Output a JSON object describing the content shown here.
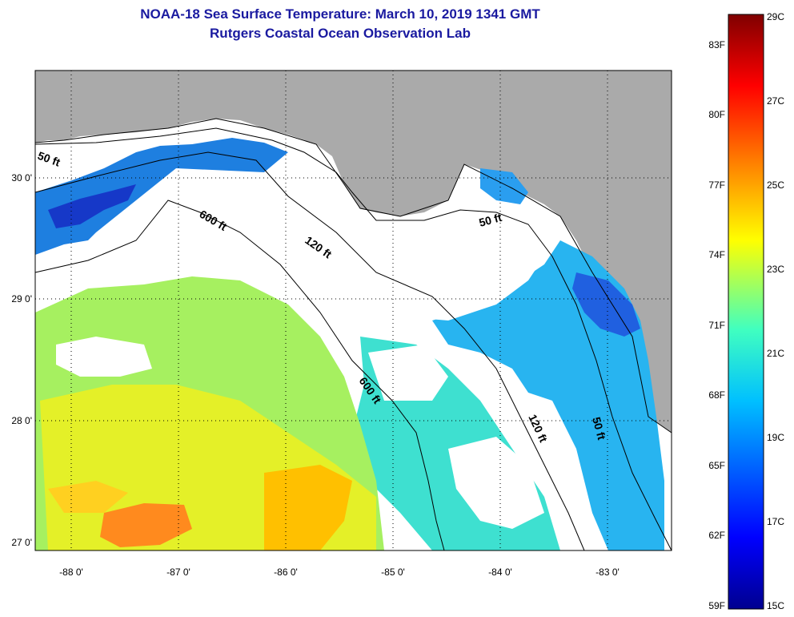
{
  "header": {
    "title": "NOAA-18 Sea Surface Temperature:  March 10, 2019 1341 GMT",
    "subtitle": "Rutgers Coastal Ocean Observation Lab"
  },
  "map": {
    "lat_labels": [
      "30 0'",
      "29 0'",
      "28 0'",
      "27 0'"
    ],
    "lon_labels": [
      "-88 0'",
      "-87 0'",
      "-86 0'",
      "-85 0'",
      "-84 0'",
      "-83 0'"
    ],
    "contour_labels": [
      "50 ft",
      "600 ft",
      "120 ft",
      "50 ft",
      "600 ft",
      "120 ft",
      "50 ft"
    ],
    "land_color": "#aaaaaa",
    "cloud_color": "#ffffff"
  },
  "colorbar": {
    "fahrenheit_labels": [
      "83F",
      "80F",
      "77F",
      "74F",
      "71F",
      "68F",
      "65F",
      "62F",
      "59F"
    ],
    "celsius_labels": [
      "29C",
      "27C",
      "25C",
      "23C",
      "21C",
      "19C",
      "17C",
      "15C"
    ],
    "colors": [
      "#7f0000",
      "#ff0000",
      "#ff8000",
      "#ffff00",
      "#80ff80",
      "#00ffff",
      "#0080ff",
      "#0000ff",
      "#00008f"
    ]
  }
}
